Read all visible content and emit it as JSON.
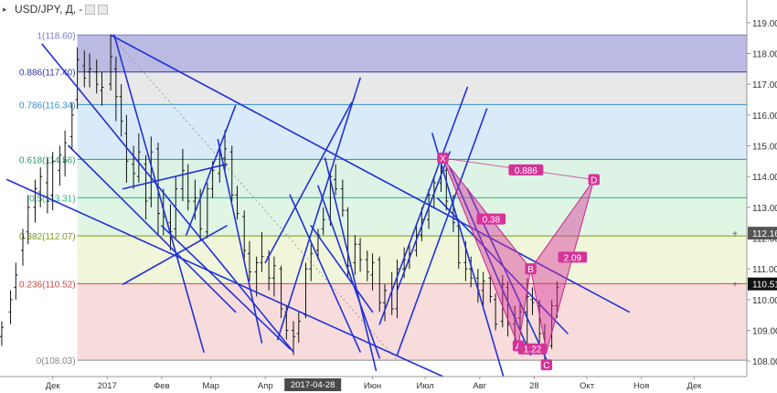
{
  "header": {
    "symbol": "USD/JPY, Д,",
    "dash": "-"
  },
  "chart_data": {
    "type": "candlestick",
    "ylim": [
      107.5,
      119.5
    ],
    "yticks": [
      108.0,
      109.0,
      110.0,
      111.0,
      112.0,
      113.0,
      114.0,
      115.0,
      116.0,
      117.0,
      118.0,
      119.0
    ],
    "ytick_labels": [
      "108.00",
      "109.00",
      "110.00",
      "111.00",
      "112.00",
      "113.00",
      "114.00",
      "115.00",
      "116.00",
      "117.00",
      "118.00",
      "119.00"
    ],
    "xlim": [
      "2016-11-01",
      "2017-12-31"
    ],
    "xticks": [
      {
        "date": "2016-12-01",
        "label": "Дек"
      },
      {
        "date": "2017-01-01",
        "label": "2017"
      },
      {
        "date": "2017-02-01",
        "label": "Фев"
      },
      {
        "date": "2017-03-01",
        "label": "Мар"
      },
      {
        "date": "2017-04-01",
        "label": "Апр"
      },
      {
        "date": "2017-04-28",
        "label": "2017-04-28",
        "highlight": true
      },
      {
        "date": "2017-06-01",
        "label": "Июн"
      },
      {
        "date": "2017-07-01",
        "label": "Июл"
      },
      {
        "date": "2017-08-01",
        "label": "Авг"
      },
      {
        "date": "2017-09-01",
        "label": "28"
      },
      {
        "date": "2017-10-01",
        "label": "Окт"
      },
      {
        "date": "2017-11-01",
        "label": "Ноя"
      },
      {
        "date": "2017-12-01",
        "label": "Дек"
      }
    ],
    "price_labels": [
      {
        "value": 112.16,
        "label": "112.16",
        "color": "#555555"
      },
      {
        "value": 110.51,
        "label": "110.51",
        "color": "#111111"
      }
    ],
    "fib_levels": [
      {
        "ratio_label": "1(118.60)",
        "price": 118.6,
        "color": "#7a7ac8",
        "fill": "#a9a9dc"
      },
      {
        "ratio_label": "0.886(117.40)",
        "price": 117.4,
        "color": "#3333aa",
        "fill": "#e2e2e2"
      },
      {
        "ratio_label": "0.786(116.34)",
        "price": 116.34,
        "color": "#3a8fc8",
        "fill": "#d0e6f6"
      },
      {
        "ratio_label": "0.618(114.56)",
        "price": 114.56,
        "color": "#2b9d63",
        "fill": "#d5f0e0"
      },
      {
        "ratio_label": "0.5(113.31)",
        "price": 113.31,
        "color": "#2bb57f",
        "fill": "#d9f2df"
      },
      {
        "ratio_label": "0.382(112.07)",
        "price": 112.07,
        "color": "#7a9a1a",
        "fill": "#eef4d2"
      },
      {
        "ratio_label": "0.236(110.52)",
        "price": 110.52,
        "color": "#d24444",
        "fill": "#f6d3d3"
      },
      {
        "ratio_label": "0(108.03)",
        "price": 108.03,
        "color": "#888888",
        "fill": null
      }
    ],
    "pattern_points": [
      {
        "label": "X",
        "date": "2017-07-11",
        "price": 114.6
      },
      {
        "label": "A",
        "date": "2017-08-23",
        "price": 108.5
      },
      {
        "label": "B",
        "date": "2017-08-30",
        "price": 111.0
      },
      {
        "label": "C",
        "date": "2017-09-08",
        "price": 108.3
      },
      {
        "label": "D",
        "date": "2017-10-05",
        "price": 113.9
      }
    ],
    "pattern_ratios": [
      {
        "label": "0.886"
      },
      {
        "label": "0.38"
      },
      {
        "label": "2.09"
      },
      {
        "label": "1.22"
      }
    ],
    "ohlc": [
      {
        "date": "2016-11-02",
        "open": 108.8,
        "high": 109.3,
        "low": 108.5,
        "close": 109.1
      },
      {
        "date": "2016-11-07",
        "open": 109.6,
        "high": 110.3,
        "low": 109.2,
        "close": 110.0
      },
      {
        "date": "2016-11-10",
        "open": 110.4,
        "high": 111.2,
        "low": 110.0,
        "close": 110.8
      },
      {
        "date": "2016-11-14",
        "open": 111.6,
        "high": 112.3,
        "low": 111.1,
        "close": 112.0
      },
      {
        "date": "2016-11-17",
        "open": 112.2,
        "high": 113.4,
        "low": 111.8,
        "close": 113.0
      },
      {
        "date": "2016-11-21",
        "open": 113.0,
        "high": 113.9,
        "low": 112.5,
        "close": 113.6
      },
      {
        "date": "2016-11-24",
        "open": 113.5,
        "high": 114.3,
        "low": 113.0,
        "close": 114.0
      },
      {
        "date": "2016-11-28",
        "open": 113.8,
        "high": 114.6,
        "low": 112.8,
        "close": 113.2
      },
      {
        "date": "2016-12-01",
        "open": 113.4,
        "high": 114.8,
        "low": 112.9,
        "close": 114.5
      },
      {
        "date": "2016-12-05",
        "open": 114.2,
        "high": 115.0,
        "low": 113.7,
        "close": 114.7
      },
      {
        "date": "2016-12-08",
        "open": 114.5,
        "high": 115.5,
        "low": 114.0,
        "close": 115.1
      },
      {
        "date": "2016-12-12",
        "open": 115.3,
        "high": 116.4,
        "low": 114.9,
        "close": 116.0
      },
      {
        "date": "2016-12-15",
        "open": 116.5,
        "high": 118.2,
        "low": 116.2,
        "close": 117.8
      },
      {
        "date": "2016-12-19",
        "open": 117.6,
        "high": 118.1,
        "low": 116.9,
        "close": 117.2
      },
      {
        "date": "2016-12-22",
        "open": 117.4,
        "high": 118.0,
        "low": 116.9,
        "close": 117.5
      },
      {
        "date": "2016-12-26",
        "open": 117.4,
        "high": 117.8,
        "low": 116.7,
        "close": 117.0
      },
      {
        "date": "2016-12-29",
        "open": 116.8,
        "high": 117.4,
        "low": 116.3,
        "close": 116.9
      },
      {
        "date": "2017-01-03",
        "open": 117.0,
        "high": 118.6,
        "low": 116.8,
        "close": 117.9
      },
      {
        "date": "2017-01-06",
        "open": 117.5,
        "high": 117.9,
        "low": 115.8,
        "close": 116.6
      },
      {
        "date": "2017-01-09",
        "open": 116.6,
        "high": 117.0,
        "low": 115.3,
        "close": 115.8
      },
      {
        "date": "2017-01-12",
        "open": 115.4,
        "high": 116.0,
        "low": 113.8,
        "close": 114.5
      },
      {
        "date": "2017-01-16",
        "open": 114.4,
        "high": 115.0,
        "low": 113.6,
        "close": 114.1
      },
      {
        "date": "2017-01-19",
        "open": 114.0,
        "high": 115.4,
        "low": 113.8,
        "close": 114.8
      },
      {
        "date": "2017-01-23",
        "open": 114.4,
        "high": 114.7,
        "low": 112.6,
        "close": 113.2
      },
      {
        "date": "2017-01-26",
        "open": 113.3,
        "high": 115.3,
        "low": 113.0,
        "close": 114.8
      },
      {
        "date": "2017-01-30",
        "open": 114.9,
        "high": 115.1,
        "low": 112.1,
        "close": 112.8
      },
      {
        "date": "2017-02-02",
        "open": 113.0,
        "high": 113.6,
        "low": 112.1,
        "close": 112.7
      },
      {
        "date": "2017-02-06",
        "open": 112.5,
        "high": 113.1,
        "low": 111.6,
        "close": 112.2
      },
      {
        "date": "2017-02-09",
        "open": 112.3,
        "high": 114.0,
        "low": 112.0,
        "close": 113.6
      },
      {
        "date": "2017-02-13",
        "open": 113.6,
        "high": 114.9,
        "low": 113.2,
        "close": 114.2
      },
      {
        "date": "2017-02-16",
        "open": 114.1,
        "high": 114.4,
        "low": 112.9,
        "close": 113.2
      },
      {
        "date": "2017-02-20",
        "open": 113.2,
        "high": 113.9,
        "low": 112.6,
        "close": 113.3
      },
      {
        "date": "2017-02-23",
        "open": 113.2,
        "high": 113.6,
        "low": 111.9,
        "close": 112.3
      },
      {
        "date": "2017-02-27",
        "open": 112.2,
        "high": 113.8,
        "low": 112.0,
        "close": 113.6
      },
      {
        "date": "2017-03-02",
        "open": 113.6,
        "high": 114.5,
        "low": 113.3,
        "close": 114.2
      },
      {
        "date": "2017-03-06",
        "open": 114.1,
        "high": 114.9,
        "low": 113.8,
        "close": 114.7
      },
      {
        "date": "2017-03-09",
        "open": 114.6,
        "high": 115.5,
        "low": 114.2,
        "close": 114.9
      },
      {
        "date": "2017-03-13",
        "open": 114.8,
        "high": 115.0,
        "low": 113.2,
        "close": 113.4
      },
      {
        "date": "2017-03-16",
        "open": 113.4,
        "high": 113.7,
        "low": 112.6,
        "close": 112.8
      },
      {
        "date": "2017-03-20",
        "open": 112.7,
        "high": 112.9,
        "low": 111.3,
        "close": 111.6
      },
      {
        "date": "2017-03-23",
        "open": 111.5,
        "high": 111.9,
        "low": 110.6,
        "close": 110.9
      },
      {
        "date": "2017-03-27",
        "open": 110.9,
        "high": 111.4,
        "low": 110.1,
        "close": 111.2
      },
      {
        "date": "2017-03-30",
        "open": 111.2,
        "high": 112.2,
        "low": 110.9,
        "close": 111.4
      },
      {
        "date": "2017-04-03",
        "open": 111.4,
        "high": 111.6,
        "low": 110.3,
        "close": 110.7
      },
      {
        "date": "2017-04-06",
        "open": 110.7,
        "high": 111.4,
        "low": 110.1,
        "close": 111.1
      },
      {
        "date": "2017-04-10",
        "open": 111.0,
        "high": 111.1,
        "low": 109.4,
        "close": 109.7
      },
      {
        "date": "2017-04-13",
        "open": 109.6,
        "high": 109.8,
        "low": 108.7,
        "close": 109.0
      },
      {
        "date": "2017-04-17",
        "open": 109.0,
        "high": 109.3,
        "low": 108.2,
        "close": 108.8
      },
      {
        "date": "2017-04-20",
        "open": 108.9,
        "high": 109.6,
        "low": 108.6,
        "close": 109.3
      },
      {
        "date": "2017-04-24",
        "open": 109.5,
        "high": 111.2,
        "low": 109.4,
        "close": 111.0
      },
      {
        "date": "2017-04-27",
        "open": 111.0,
        "high": 111.8,
        "low": 110.6,
        "close": 111.5
      },
      {
        "date": "2017-05-01",
        "open": 111.6,
        "high": 112.3,
        "low": 111.3,
        "close": 112.1
      },
      {
        "date": "2017-05-04",
        "open": 112.3,
        "high": 113.0,
        "low": 112.1,
        "close": 112.6
      },
      {
        "date": "2017-05-08",
        "open": 112.6,
        "high": 114.2,
        "low": 112.4,
        "close": 114.0
      },
      {
        "date": "2017-05-11",
        "open": 113.9,
        "high": 114.4,
        "low": 113.4,
        "close": 113.6
      },
      {
        "date": "2017-05-15",
        "open": 113.6,
        "high": 113.9,
        "low": 112.7,
        "close": 112.9
      },
      {
        "date": "2017-05-18",
        "open": 112.9,
        "high": 113.0,
        "low": 110.7,
        "close": 111.1
      },
      {
        "date": "2017-05-22",
        "open": 111.2,
        "high": 112.1,
        "low": 110.8,
        "close": 111.8
      },
      {
        "date": "2017-05-25",
        "open": 111.8,
        "high": 112.0,
        "low": 110.9,
        "close": 111.3
      },
      {
        "date": "2017-05-29",
        "open": 111.3,
        "high": 111.6,
        "low": 110.6,
        "close": 110.9
      },
      {
        "date": "2017-06-01",
        "open": 110.8,
        "high": 111.5,
        "low": 110.3,
        "close": 111.2
      },
      {
        "date": "2017-06-05",
        "open": 111.3,
        "high": 111.4,
        "low": 109.6,
        "close": 109.9
      },
      {
        "date": "2017-06-08",
        "open": 109.9,
        "high": 110.5,
        "low": 109.3,
        "close": 110.3
      },
      {
        "date": "2017-06-12",
        "open": 110.2,
        "high": 110.9,
        "low": 109.5,
        "close": 109.7
      },
      {
        "date": "2017-06-15",
        "open": 109.7,
        "high": 111.3,
        "low": 109.4,
        "close": 111.0
      },
      {
        "date": "2017-06-19",
        "open": 111.0,
        "high": 111.7,
        "low": 110.7,
        "close": 111.3
      },
      {
        "date": "2017-06-22",
        "open": 111.3,
        "high": 111.8,
        "low": 111.0,
        "close": 111.5
      },
      {
        "date": "2017-06-26",
        "open": 111.6,
        "high": 112.4,
        "low": 111.4,
        "close": 112.1
      },
      {
        "date": "2017-06-29",
        "open": 112.1,
        "high": 113.0,
        "low": 111.9,
        "close": 112.6
      },
      {
        "date": "2017-07-03",
        "open": 112.6,
        "high": 113.6,
        "low": 112.3,
        "close": 113.4
      },
      {
        "date": "2017-07-06",
        "open": 113.4,
        "high": 114.0,
        "low": 113.0,
        "close": 113.8
      },
      {
        "date": "2017-07-10",
        "open": 113.8,
        "high": 114.5,
        "low": 113.5,
        "close": 114.2
      },
      {
        "date": "2017-07-13",
        "open": 114.2,
        "high": 114.3,
        "low": 112.9,
        "close": 113.2
      },
      {
        "date": "2017-07-17",
        "open": 113.2,
        "high": 113.4,
        "low": 112.2,
        "close": 112.5
      },
      {
        "date": "2017-07-20",
        "open": 112.4,
        "high": 112.6,
        "low": 111.0,
        "close": 111.2
      },
      {
        "date": "2017-07-24",
        "open": 111.2,
        "high": 111.9,
        "low": 110.6,
        "close": 111.0
      },
      {
        "date": "2017-07-27",
        "open": 111.0,
        "high": 111.4,
        "low": 110.4,
        "close": 110.7
      },
      {
        "date": "2017-07-31",
        "open": 110.7,
        "high": 111.0,
        "low": 109.9,
        "close": 110.3
      },
      {
        "date": "2017-08-03",
        "open": 110.3,
        "high": 110.9,
        "low": 109.8,
        "close": 110.6
      },
      {
        "date": "2017-08-07",
        "open": 110.7,
        "high": 110.8,
        "low": 109.9,
        "close": 110.1
      },
      {
        "date": "2017-08-10",
        "open": 110.0,
        "high": 110.2,
        "low": 109.0,
        "close": 109.2
      },
      {
        "date": "2017-08-14",
        "open": 109.3,
        "high": 110.8,
        "low": 109.1,
        "close": 110.5
      },
      {
        "date": "2017-08-17",
        "open": 110.4,
        "high": 110.6,
        "low": 108.8,
        "close": 109.2
      },
      {
        "date": "2017-08-21",
        "open": 109.2,
        "high": 109.8,
        "low": 108.6,
        "close": 109.4
      },
      {
        "date": "2017-08-24",
        "open": 109.4,
        "high": 109.9,
        "low": 109.0,
        "close": 109.6
      },
      {
        "date": "2017-08-28",
        "open": 109.6,
        "high": 110.7,
        "low": 108.3,
        "close": 110.1
      },
      {
        "date": "2017-08-31",
        "open": 110.0,
        "high": 110.4,
        "low": 109.5,
        "close": 109.9
      },
      {
        "date": "2017-09-04",
        "open": 109.8,
        "high": 110.0,
        "low": 108.6,
        "close": 108.9
      },
      {
        "date": "2017-09-07",
        "open": 108.9,
        "high": 109.2,
        "low": 107.9,
        "close": 108.4
      },
      {
        "date": "2017-09-11",
        "open": 108.5,
        "high": 110.0,
        "low": 108.4,
        "close": 109.8
      },
      {
        "date": "2017-09-14",
        "open": 109.8,
        "high": 110.6,
        "low": 109.4,
        "close": 110.4
      }
    ]
  }
}
